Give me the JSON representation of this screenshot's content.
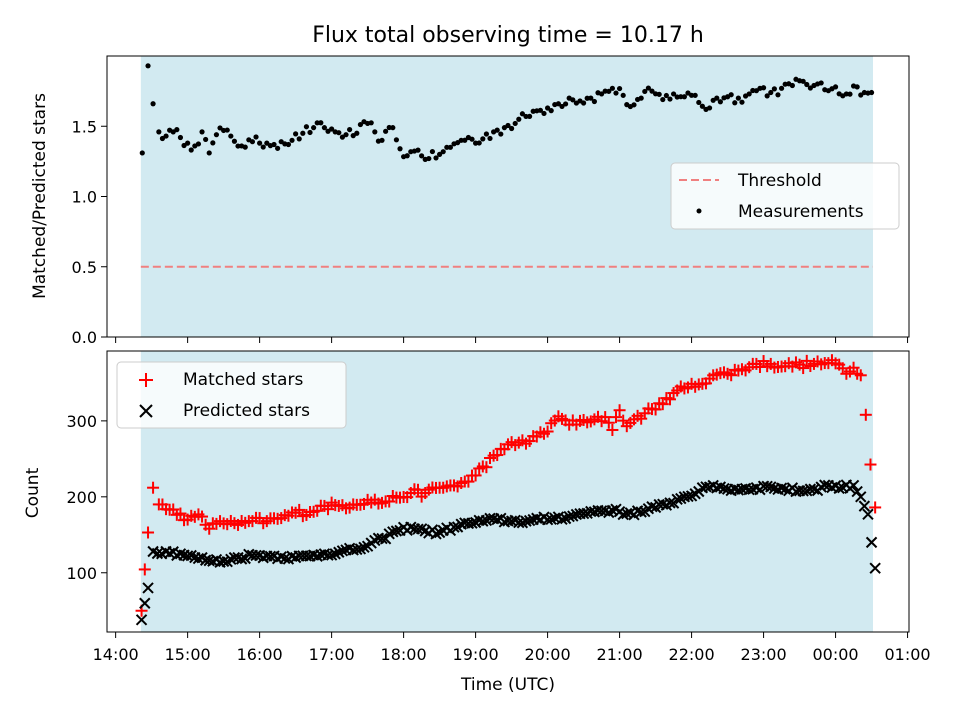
{
  "chart_data": [
    {
      "type": "scatter",
      "title": "Flux total observing time = 10.17 h",
      "ylabel": "Matched/Predicted stars",
      "xlabel": "",
      "ylim": [
        0,
        2.0
      ],
      "yticks": [
        0.0,
        0.5,
        1.0,
        1.5
      ],
      "ytick_labels": [
        "0.0",
        "0.5",
        "1.0",
        "1.5"
      ],
      "shaded_interval_hours": [
        14.35,
        24.52
      ],
      "threshold": 0.5,
      "legend": {
        "position": "center-right",
        "entries": [
          "Threshold",
          "Measurements"
        ]
      },
      "series": [
        {
          "name": "Measurements",
          "color": "#000000",
          "anchors": [
            [
              14.37,
              1.31
            ],
            [
              14.45,
              1.93
            ],
            [
              14.52,
              1.66
            ],
            [
              14.6,
              1.46
            ],
            [
              14.7,
              1.43
            ],
            [
              14.8,
              1.46
            ],
            [
              14.9,
              1.42
            ],
            [
              15.0,
              1.38
            ],
            [
              15.1,
              1.36
            ],
            [
              15.2,
              1.46
            ],
            [
              15.3,
              1.31
            ],
            [
              15.4,
              1.44
            ],
            [
              15.5,
              1.47
            ],
            [
              15.6,
              1.43
            ],
            [
              15.75,
              1.36
            ],
            [
              15.9,
              1.39
            ],
            [
              16.0,
              1.38
            ],
            [
              16.1,
              1.38
            ],
            [
              16.2,
              1.37
            ],
            [
              16.3,
              1.39
            ],
            [
              16.45,
              1.4
            ],
            [
              16.6,
              1.45
            ],
            [
              16.75,
              1.49
            ],
            [
              16.9,
              1.49
            ],
            [
              17.05,
              1.46
            ],
            [
              17.2,
              1.44
            ],
            [
              17.35,
              1.45
            ],
            [
              17.5,
              1.52
            ],
            [
              17.6,
              1.46
            ],
            [
              17.7,
              1.4
            ],
            [
              17.85,
              1.49
            ],
            [
              17.95,
              1.34
            ],
            [
              18.05,
              1.29
            ],
            [
              18.2,
              1.33
            ],
            [
              18.35,
              1.27
            ],
            [
              18.5,
              1.3
            ],
            [
              18.65,
              1.35
            ],
            [
              18.8,
              1.4
            ],
            [
              18.9,
              1.42
            ],
            [
              19.0,
              1.38
            ],
            [
              19.1,
              1.41
            ],
            [
              19.25,
              1.46
            ],
            [
              19.4,
              1.49
            ],
            [
              19.55,
              1.52
            ],
            [
              19.7,
              1.57
            ],
            [
              19.85,
              1.61
            ],
            [
              20.0,
              1.63
            ],
            [
              20.15,
              1.66
            ],
            [
              20.3,
              1.7
            ],
            [
              20.45,
              1.68
            ],
            [
              20.6,
              1.7
            ],
            [
              20.75,
              1.73
            ],
            [
              20.9,
              1.77
            ],
            [
              21.05,
              1.72
            ],
            [
              21.15,
              1.64
            ],
            [
              21.3,
              1.7
            ],
            [
              21.45,
              1.75
            ],
            [
              21.6,
              1.69
            ],
            [
              21.75,
              1.73
            ],
            [
              21.9,
              1.71
            ],
            [
              22.05,
              1.72
            ],
            [
              22.2,
              1.62
            ],
            [
              22.35,
              1.7
            ],
            [
              22.5,
              1.71
            ],
            [
              22.65,
              1.7
            ],
            [
              22.8,
              1.73
            ],
            [
              22.95,
              1.77
            ],
            [
              23.1,
              1.74
            ],
            [
              23.25,
              1.77
            ],
            [
              23.4,
              1.79
            ],
            [
              23.55,
              1.82
            ],
            [
              23.7,
              1.79
            ],
            [
              23.85,
              1.76
            ],
            [
              24.0,
              1.78
            ],
            [
              24.15,
              1.73
            ],
            [
              24.3,
              1.78
            ],
            [
              24.4,
              1.74
            ],
            [
              24.5,
              1.74
            ]
          ],
          "interior_noise": 0.04
        },
        {
          "name": "Threshold",
          "style": "dashed",
          "color": "#f08080",
          "x": [
            14.35,
            24.52
          ],
          "y": [
            0.5,
            0.5
          ]
        }
      ]
    },
    {
      "type": "scatter",
      "title": "",
      "ylabel": "Count",
      "xlabel": "Time (UTC)",
      "ylim": [
        22,
        392
      ],
      "yticks": [
        100,
        200,
        300
      ],
      "ytick_labels": [
        "100",
        "200",
        "300"
      ],
      "xlim_hours": [
        13.88,
        25.02
      ],
      "xticks_hours": [
        14,
        15,
        16,
        17,
        18,
        19,
        20,
        21,
        22,
        23,
        24,
        25
      ],
      "xtick_labels": [
        "14:00",
        "15:00",
        "16:00",
        "17:00",
        "18:00",
        "19:00",
        "20:00",
        "21:00",
        "22:00",
        "23:00",
        "00:00",
        "01:00"
      ],
      "shaded_interval_hours": [
        14.35,
        24.52
      ],
      "legend": {
        "position": "top-left",
        "entries": [
          "Matched stars",
          "Predicted stars"
        ]
      },
      "series": [
        {
          "name": "Matched stars",
          "marker": "+",
          "color": "#ff0000",
          "anchors": [
            [
              14.36,
              50
            ],
            [
              14.45,
              153
            ],
            [
              14.52,
              212
            ],
            [
              14.6,
              190
            ],
            [
              14.75,
              183
            ],
            [
              14.9,
              178
            ],
            [
              15.0,
              170
            ],
            [
              15.2,
              174
            ],
            [
              15.3,
              158
            ],
            [
              15.45,
              168
            ],
            [
              15.7,
              163
            ],
            [
              15.9,
              168
            ],
            [
              16.1,
              168
            ],
            [
              16.3,
              172
            ],
            [
              16.5,
              179
            ],
            [
              16.7,
              180
            ],
            [
              16.9,
              188
            ],
            [
              17.1,
              188
            ],
            [
              17.3,
              190
            ],
            [
              17.5,
              196
            ],
            [
              17.7,
              192
            ],
            [
              17.9,
              199
            ],
            [
              18.1,
              205
            ],
            [
              18.3,
              205
            ],
            [
              18.5,
              212
            ],
            [
              18.7,
              215
            ],
            [
              18.9,
              220
            ],
            [
              19.1,
              240
            ],
            [
              19.3,
              255
            ],
            [
              19.5,
              272
            ],
            [
              19.7,
              270
            ],
            [
              19.9,
              285
            ],
            [
              20.0,
              286
            ],
            [
              20.15,
              306
            ],
            [
              20.3,
              295
            ],
            [
              20.45,
              300
            ],
            [
              20.65,
              302
            ],
            [
              20.8,
              305
            ],
            [
              20.9,
              288
            ],
            [
              21.0,
              314
            ],
            [
              21.1,
              293
            ],
            [
              21.2,
              302
            ],
            [
              21.35,
              310
            ],
            [
              21.5,
              315
            ],
            [
              21.65,
              330
            ],
            [
              21.8,
              340
            ],
            [
              21.95,
              344
            ],
            [
              22.1,
              348
            ],
            [
              22.3,
              360
            ],
            [
              22.5,
              362
            ],
            [
              22.7,
              368
            ],
            [
              22.9,
              375
            ],
            [
              23.1,
              375
            ],
            [
              23.3,
              372
            ],
            [
              23.5,
              374
            ],
            [
              23.7,
              375
            ],
            [
              23.9,
              376
            ],
            [
              24.05,
              374
            ],
            [
              24.15,
              362
            ],
            [
              24.25,
              370
            ],
            [
              24.35,
              360
            ],
            [
              24.42,
              308
            ],
            [
              24.55,
              186
            ]
          ],
          "interior_noise": 5
        },
        {
          "name": "Predicted stars",
          "marker": "x",
          "color": "#000000",
          "anchors": [
            [
              14.36,
              38
            ],
            [
              14.45,
              80
            ],
            [
              14.52,
              128
            ],
            [
              14.7,
              128
            ],
            [
              14.9,
              125
            ],
            [
              15.1,
              120
            ],
            [
              15.3,
              116
            ],
            [
              15.5,
              115
            ],
            [
              15.7,
              120
            ],
            [
              15.9,
              123
            ],
            [
              16.1,
              122
            ],
            [
              16.3,
              121
            ],
            [
              16.5,
              120
            ],
            [
              16.7,
              122
            ],
            [
              16.9,
              125
            ],
            [
              17.1,
              127
            ],
            [
              17.3,
              130
            ],
            [
              17.5,
              135
            ],
            [
              17.7,
              145
            ],
            [
              17.9,
              155
            ],
            [
              18.1,
              160
            ],
            [
              18.3,
              155
            ],
            [
              18.5,
              153
            ],
            [
              18.7,
              160
            ],
            [
              18.9,
              165
            ],
            [
              19.1,
              168
            ],
            [
              19.3,
              170
            ],
            [
              19.5,
              168
            ],
            [
              19.7,
              168
            ],
            [
              19.9,
              170
            ],
            [
              20.1,
              172
            ],
            [
              20.3,
              174
            ],
            [
              20.5,
              178
            ],
            [
              20.7,
              182
            ],
            [
              20.9,
              182
            ],
            [
              21.1,
              178
            ],
            [
              21.3,
              180
            ],
            [
              21.5,
              186
            ],
            [
              21.7,
              192
            ],
            [
              21.9,
              200
            ],
            [
              22.1,
              207
            ],
            [
              22.3,
              215
            ],
            [
              22.5,
              210
            ],
            [
              22.7,
              210
            ],
            [
              22.9,
              212
            ],
            [
              23.1,
              213
            ],
            [
              23.3,
              210
            ],
            [
              23.5,
              208
            ],
            [
              23.7,
              210
            ],
            [
              23.9,
              215
            ],
            [
              24.1,
              212
            ],
            [
              24.25,
              215
            ],
            [
              24.35,
              200
            ],
            [
              24.45,
              177
            ],
            [
              24.55,
              106
            ]
          ],
          "interior_noise": 3
        }
      ]
    }
  ]
}
